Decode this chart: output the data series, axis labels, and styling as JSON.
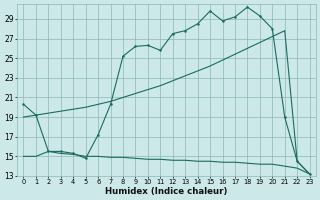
{
  "bg_color": "#cce8e8",
  "grid_color": "#8ab8b8",
  "line_color": "#1a6b60",
  "xlabel": "Humidex (Indice chaleur)",
  "xlim": [
    -0.5,
    23.5
  ],
  "ylim": [
    13,
    30.5
  ],
  "x_ticks": [
    0,
    1,
    2,
    3,
    4,
    5,
    6,
    7,
    8,
    9,
    10,
    11,
    12,
    13,
    14,
    15,
    16,
    17,
    18,
    19,
    20,
    21,
    22,
    23
  ],
  "y_ticks": [
    13,
    15,
    17,
    19,
    21,
    23,
    25,
    27,
    29
  ],
  "main_x": [
    0,
    1,
    2,
    3,
    4,
    5,
    6,
    7,
    8,
    9,
    10,
    11,
    12,
    13,
    14,
    15,
    16,
    17,
    18,
    19,
    20,
    21,
    22,
    23
  ],
  "main_y": [
    20.3,
    19.2,
    15.5,
    15.5,
    15.3,
    14.8,
    17.2,
    20.3,
    25.2,
    26.2,
    26.3,
    25.8,
    27.5,
    27.8,
    28.5,
    29.8,
    28.8,
    29.2,
    30.2,
    29.3,
    28.0,
    19.0,
    14.5,
    13.2
  ],
  "diag_x": [
    0,
    1,
    2,
    3,
    4,
    5,
    6,
    7,
    8,
    9,
    10,
    11,
    12,
    13,
    14,
    15,
    16,
    17,
    18,
    19,
    20,
    21,
    22,
    23
  ],
  "diag_y": [
    19.0,
    19.2,
    19.4,
    19.6,
    19.8,
    20.0,
    20.3,
    20.6,
    21.0,
    21.4,
    21.8,
    22.2,
    22.7,
    23.2,
    23.7,
    24.2,
    24.8,
    25.4,
    26.0,
    26.6,
    27.2,
    27.8,
    14.5,
    13.2
  ],
  "flat_x": [
    0,
    1,
    2,
    3,
    4,
    5,
    6,
    7,
    8,
    9,
    10,
    11,
    12,
    13,
    14,
    15,
    16,
    17,
    18,
    19,
    20,
    21,
    22,
    23
  ],
  "flat_y": [
    15.0,
    15.0,
    15.5,
    15.3,
    15.2,
    15.0,
    15.0,
    14.9,
    14.9,
    14.8,
    14.7,
    14.7,
    14.6,
    14.6,
    14.5,
    14.5,
    14.4,
    14.4,
    14.3,
    14.2,
    14.2,
    14.0,
    13.8,
    13.2
  ]
}
